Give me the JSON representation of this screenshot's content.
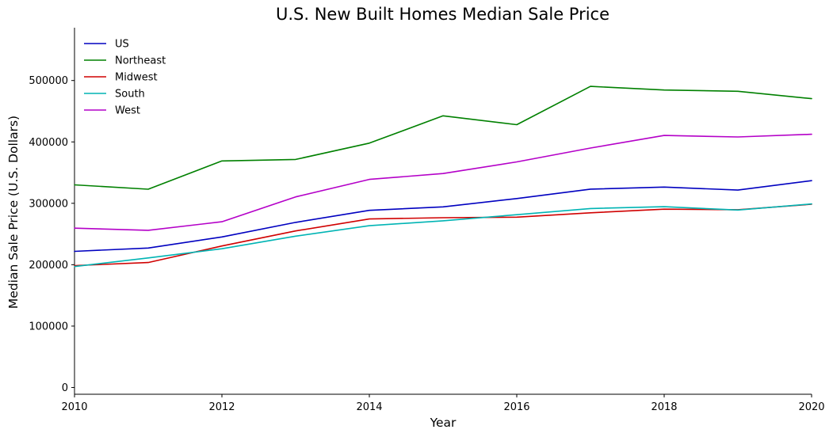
{
  "chart_data": {
    "type": "line",
    "title": "U.S. New Built Homes Median Sale Price",
    "xlabel": "Year",
    "ylabel": "Median Sale Price (U.S. Dollars)",
    "x": [
      2010,
      2011,
      2012,
      2013,
      2014,
      2015,
      2016,
      2017,
      2018,
      2019,
      2020
    ],
    "xlim": [
      2010,
      2020
    ],
    "ylim": [
      -11000,
      586000
    ],
    "xticks": [
      "2010",
      "2012",
      "2014",
      "2016",
      "2018",
      "2020"
    ],
    "yticks": [
      "0",
      "100000",
      "200000",
      "300000",
      "400000",
      "500000"
    ],
    "grid": false,
    "legend_position": "top-left",
    "series": [
      {
        "name": "US",
        "color": "#0000c0",
        "values": [
          221800,
          227200,
          245200,
          268900,
          288500,
          294200,
          307800,
          323100,
          326400,
          321500,
          336900
        ]
      },
      {
        "name": "Northeast",
        "color": "#008000",
        "values": [
          330000,
          323000,
          369000,
          371500,
          398000,
          442500,
          428000,
          490500,
          484500,
          482500,
          470500
        ]
      },
      {
        "name": "Midwest",
        "color": "#d00000",
        "values": [
          198500,
          203500,
          230500,
          255000,
          274500,
          276500,
          277500,
          284500,
          290500,
          289500,
          298500
        ]
      },
      {
        "name": "South",
        "color": "#00b4b4",
        "values": [
          197000,
          211000,
          226000,
          246500,
          263500,
          271500,
          281500,
          291500,
          294500,
          289000,
          299000
        ]
      },
      {
        "name": "West",
        "color": "#b400c8",
        "values": [
          259500,
          256000,
          270000,
          310500,
          339000,
          348500,
          367500,
          390000,
          410500,
          408000,
          412500
        ]
      }
    ]
  }
}
